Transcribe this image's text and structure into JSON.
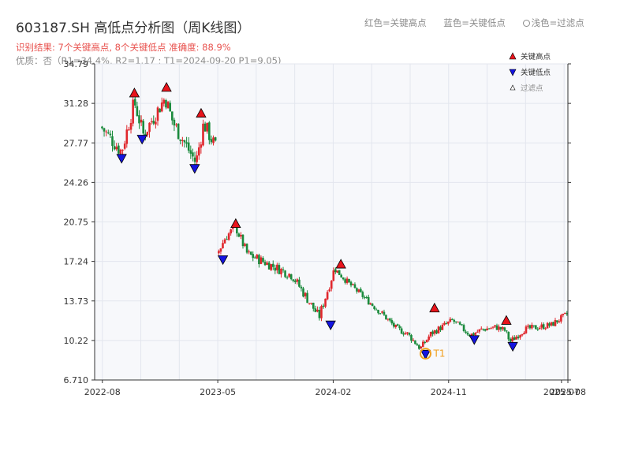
{
  "header": {
    "title": "603187.SH 高低点分析图（周K线图）",
    "result": "识别结果: 7个关键高点, 8个关键低点  准确度: 88.9%",
    "quality": "优质：否（R1=34.4%, R2=1.17 ; T1=2024-09-20 P1=9.05)",
    "legend_high": "红色=关键高点",
    "legend_low": "蓝色=关键低点",
    "legend_filter": "浅色=过滤点"
  },
  "colors": {
    "up": "#e0262c",
    "down": "#1a8a3c",
    "high_marker": "#e8141c",
    "low_marker": "#1414e0",
    "t1": "#f0a020",
    "plot_bg": "#f7f8fb"
  },
  "chart_data": {
    "type": "candlestick",
    "y_ticks": [
      "6.710",
      "10.22",
      "13.73",
      "17.24",
      "20.75",
      "24.26",
      "27.77",
      "31.28",
      "34.79"
    ],
    "ylim": [
      6.71,
      34.79
    ],
    "x_ticks": [
      {
        "label": "2022-08",
        "t": 0
      },
      {
        "label": "2023-05",
        "t": 9
      },
      {
        "label": "2024-02",
        "t": 18
      },
      {
        "label": "2024-11",
        "t": 27
      },
      {
        "label": "2025-07",
        "t": 35.8
      },
      {
        "label": "2025-08",
        "t": 36.3
      }
    ],
    "xlim": [
      -0.6,
      36.3
    ],
    "legend": {
      "high": "关键高点",
      "low": "关键低点",
      "filtered": "过滤点"
    },
    "t1_label": "T1",
    "t1_point": {
      "t": 25.2,
      "price": 9.05
    },
    "segments": [
      {
        "t_start": -0.1,
        "t_end": 8.9,
        "open": 29.2,
        "anchors": [
          [
            -0.1,
            29.2
          ],
          [
            1.5,
            27.0
          ],
          [
            2.5,
            31.4
          ],
          [
            3.2,
            28.5
          ],
          [
            4.9,
            31.8
          ],
          [
            5.5,
            29.6
          ],
          [
            7.3,
            26.0
          ],
          [
            7.9,
            29.5
          ],
          [
            8.9,
            27.2
          ]
        ],
        "amp": 0.75,
        "count": 56
      },
      {
        "t_start": 9.0,
        "t_end": 18.1,
        "open": 18.0,
        "anchors": [
          [
            9.0,
            18.0
          ],
          [
            9.6,
            19.4
          ],
          [
            10.4,
            20.3
          ],
          [
            11.3,
            17.9
          ],
          [
            14.8,
            16.0
          ],
          [
            16.9,
            12.3
          ],
          [
            18.1,
            16.6
          ]
        ],
        "amp": 0.45,
        "count": 58
      },
      {
        "t_start": 18.1,
        "t_end": 36.3,
        "open": 16.6,
        "anchors": [
          [
            18.1,
            16.6
          ],
          [
            19.3,
            15.2
          ],
          [
            21.9,
            12.5
          ],
          [
            22.9,
            11.3
          ],
          [
            23.8,
            10.8
          ],
          [
            24.8,
            9.5
          ],
          [
            25.6,
            10.8
          ],
          [
            26.3,
            11.3
          ],
          [
            27.3,
            12.0
          ],
          [
            28.7,
            10.7
          ],
          [
            29.6,
            11.2
          ],
          [
            30.7,
            11.4
          ],
          [
            31.4,
            11.1
          ],
          [
            31.8,
            10.1
          ],
          [
            32.9,
            11.2
          ],
          [
            35.0,
            11.6
          ],
          [
            36.3,
            12.6
          ]
        ],
        "amp": 0.3,
        "count": 120
      }
    ],
    "key_highs": [
      {
        "t": 2.5,
        "price": 32.2
      },
      {
        "t": 5.0,
        "price": 32.7
      },
      {
        "t": 7.7,
        "price": 30.4
      },
      {
        "t": 10.4,
        "price": 20.6
      },
      {
        "t": 18.6,
        "price": 17.0
      },
      {
        "t": 25.9,
        "price": 13.1
      },
      {
        "t": 31.5,
        "price": 12.0
      }
    ],
    "key_lows": [
      {
        "t": 1.5,
        "price": 26.4
      },
      {
        "t": 3.1,
        "price": 28.1
      },
      {
        "t": 7.2,
        "price": 25.5
      },
      {
        "t": 9.4,
        "price": 17.4
      },
      {
        "t": 17.8,
        "price": 11.6
      },
      {
        "t": 25.2,
        "price": 9.0
      },
      {
        "t": 29.0,
        "price": 10.3
      },
      {
        "t": 32.0,
        "price": 9.7
      }
    ]
  }
}
